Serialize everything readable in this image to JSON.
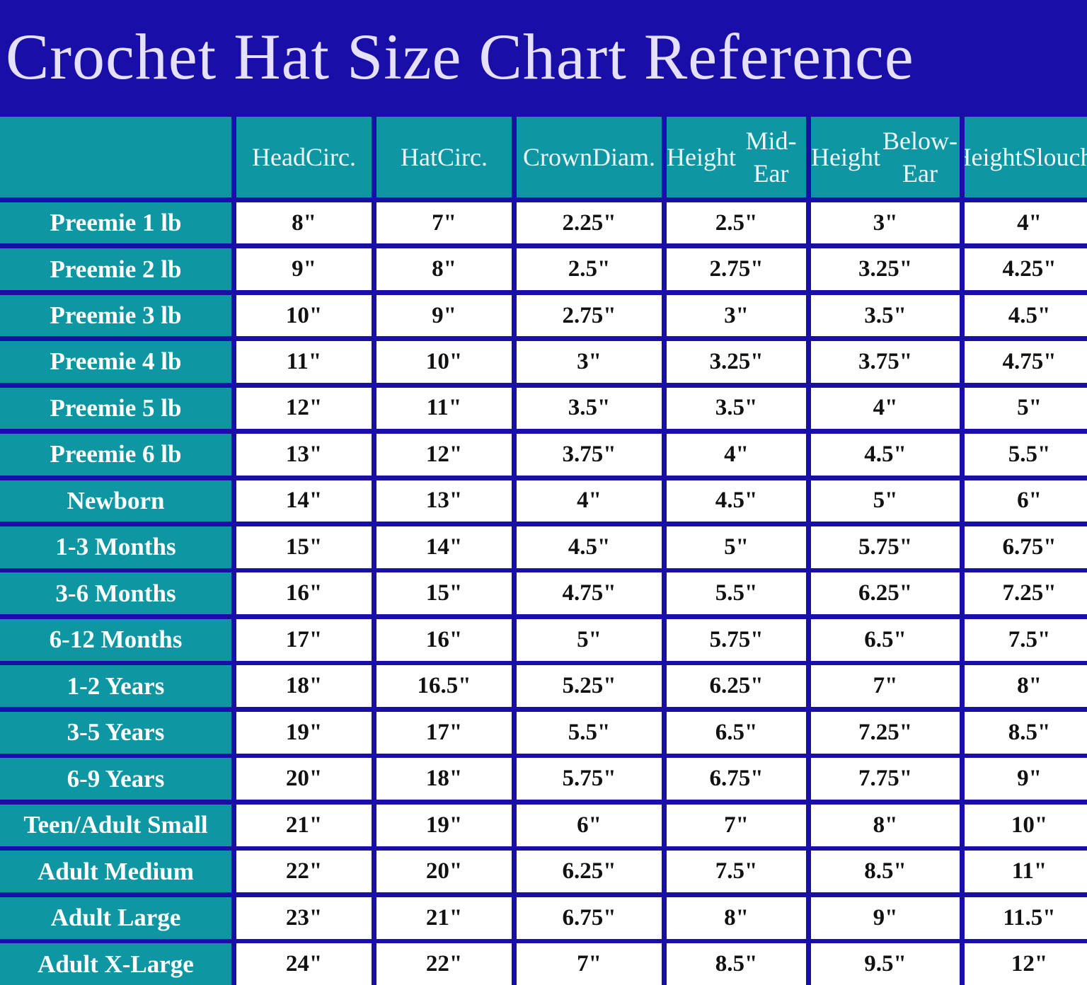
{
  "title": "Crochet Hat Size Chart Reference",
  "chart_data": {
    "type": "table",
    "title": "Crochet Hat Size Chart Reference",
    "columns": [
      "",
      "Head Circ.",
      "Hat Circ.",
      "Crown Diam.",
      "Height Mid-Ear",
      "Height Below-Ear",
      "Height Slouchy"
    ],
    "column_lines": [
      [
        ""
      ],
      [
        "Head",
        "Circ."
      ],
      [
        "Hat",
        "Circ."
      ],
      [
        "Crown",
        "Diam."
      ],
      [
        "Height",
        "Mid-Ear"
      ],
      [
        "Height",
        "Below-Ear"
      ],
      [
        "Height",
        "Slouchy"
      ]
    ],
    "rows": [
      [
        "Preemie 1 lb",
        "8\"",
        "7\"",
        "2.25\"",
        "2.5\"",
        "3\"",
        "4\""
      ],
      [
        "Preemie 2 lb",
        "9\"",
        "8\"",
        "2.5\"",
        "2.75\"",
        "3.25\"",
        "4.25\""
      ],
      [
        "Preemie 3 lb",
        "10\"",
        "9\"",
        "2.75\"",
        "3\"",
        "3.5\"",
        "4.5\""
      ],
      [
        "Preemie 4 lb",
        "11\"",
        "10\"",
        "3\"",
        "3.25\"",
        "3.75\"",
        "4.75\""
      ],
      [
        "Preemie 5 lb",
        "12\"",
        "11\"",
        "3.5\"",
        "3.5\"",
        "4\"",
        "5\""
      ],
      [
        "Preemie 6 lb",
        "13\"",
        "12\"",
        "3.75\"",
        "4\"",
        "4.5\"",
        "5.5\""
      ],
      [
        "Newborn",
        "14\"",
        "13\"",
        "4\"",
        "4.5\"",
        "5\"",
        "6\""
      ],
      [
        "1-3 Months",
        "15\"",
        "14\"",
        "4.5\"",
        "5\"",
        "5.75\"",
        "6.75\""
      ],
      [
        "3-6 Months",
        "16\"",
        "15\"",
        "4.75\"",
        "5.5\"",
        "6.25\"",
        "7.25\""
      ],
      [
        "6-12 Months",
        "17\"",
        "16\"",
        "5\"",
        "5.75\"",
        "6.5\"",
        "7.5\""
      ],
      [
        "1-2 Years",
        "18\"",
        "16.5\"",
        "5.25\"",
        "6.25\"",
        "7\"",
        "8\""
      ],
      [
        "3-5 Years",
        "19\"",
        "17\"",
        "5.5\"",
        "6.5\"",
        "7.25\"",
        "8.5\""
      ],
      [
        "6-9 Years",
        "20\"",
        "18\"",
        "5.75\"",
        "6.75\"",
        "7.75\"",
        "9\""
      ],
      [
        "Teen/Adult Small",
        "21\"",
        "19\"",
        "6\"",
        "7\"",
        "8\"",
        "10\""
      ],
      [
        "Adult Medium",
        "22\"",
        "20\"",
        "6.25\"",
        "7.5\"",
        "8.5\"",
        "11\""
      ],
      [
        "Adult Large",
        "23\"",
        "21\"",
        "6.75\"",
        "8\"",
        "9\"",
        "11.5\""
      ],
      [
        "Adult X-Large",
        "24\"",
        "22\"",
        "7\"",
        "8.5\"",
        "9.5\"",
        "12\""
      ]
    ],
    "colors": {
      "background": "#1a0ea8",
      "header_cell": "#0e96a2",
      "value_cell": "#ffffff",
      "title_text": "#e6e0ff"
    }
  }
}
